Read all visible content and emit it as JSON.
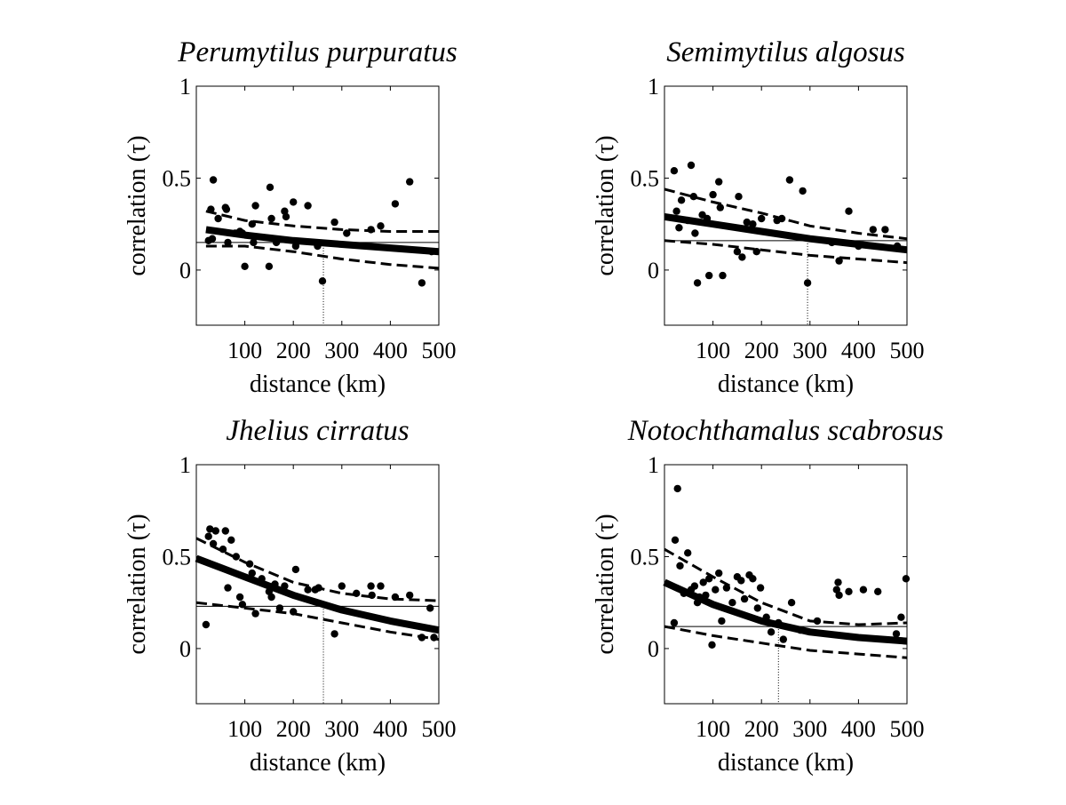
{
  "figure": {
    "xlabel": "distance (km)",
    "ylabel": "correlation (τ)"
  },
  "chart_data": [
    {
      "type": "scatter",
      "title": "Perumytilus purpuratus",
      "xlabel": "distance (km)",
      "ylabel": "correlation (τ)",
      "xlim": [
        0,
        500
      ],
      "ylim": [
        -0.3,
        1
      ],
      "xticks": [
        100,
        200,
        300,
        400,
        500
      ],
      "yticks": [
        0,
        0.5,
        1
      ],
      "points": [
        [
          25,
          0.16
        ],
        [
          30,
          0.33
        ],
        [
          33,
          0.17
        ],
        [
          35,
          0.49
        ],
        [
          45,
          0.28
        ],
        [
          60,
          0.34
        ],
        [
          62,
          0.33
        ],
        [
          65,
          0.15
        ],
        [
          80,
          0.2
        ],
        [
          85,
          0.2
        ],
        [
          90,
          0.21
        ],
        [
          95,
          0.2
        ],
        [
          100,
          0.02
        ],
        [
          115,
          0.25
        ],
        [
          118,
          0.15
        ],
        [
          122,
          0.35
        ],
        [
          150,
          0.02
        ],
        [
          152,
          0.45
        ],
        [
          155,
          0.28
        ],
        [
          165,
          0.15
        ],
        [
          182,
          0.32
        ],
        [
          185,
          0.29
        ],
        [
          200,
          0.37
        ],
        [
          205,
          0.13
        ],
        [
          230,
          0.35
        ],
        [
          250,
          0.13
        ],
        [
          260,
          -0.06
        ],
        [
          285,
          0.26
        ],
        [
          310,
          0.2
        ],
        [
          360,
          0.22
        ],
        [
          380,
          0.24
        ],
        [
          410,
          0.36
        ],
        [
          440,
          0.48
        ],
        [
          465,
          -0.07
        ],
        [
          485,
          0.1
        ]
      ],
      "fit": [
        [
          20,
          0.22
        ],
        [
          100,
          0.19
        ],
        [
          200,
          0.16
        ],
        [
          300,
          0.14
        ],
        [
          400,
          0.12
        ],
        [
          500,
          0.1
        ]
      ],
      "ci_upper": [
        [
          20,
          0.32
        ],
        [
          100,
          0.27
        ],
        [
          200,
          0.24
        ],
        [
          300,
          0.22
        ],
        [
          400,
          0.21
        ],
        [
          500,
          0.21
        ]
      ],
      "ci_lower": [
        [
          20,
          0.13
        ],
        [
          100,
          0.13
        ],
        [
          200,
          0.1
        ],
        [
          300,
          0.06
        ],
        [
          400,
          0.03
        ],
        [
          500,
          0.01
        ]
      ],
      "hline": 0.15,
      "vline": 262
    },
    {
      "type": "scatter",
      "title": "Semimytilus algosus",
      "xlabel": "distance (km)",
      "ylabel": "correlation (τ)",
      "xlim": [
        0,
        500
      ],
      "ylim": [
        -0.3,
        1
      ],
      "xticks": [
        100,
        200,
        300,
        400,
        500
      ],
      "yticks": [
        0,
        0.5,
        1
      ],
      "points": [
        [
          20,
          0.54
        ],
        [
          25,
          0.32
        ],
        [
          30,
          0.23
        ],
        [
          35,
          0.38
        ],
        [
          48,
          0.27
        ],
        [
          55,
          0.57
        ],
        [
          60,
          0.4
        ],
        [
          63,
          0.2
        ],
        [
          68,
          -0.07
        ],
        [
          78,
          0.3
        ],
        [
          88,
          0.28
        ],
        [
          92,
          -0.03
        ],
        [
          100,
          0.41
        ],
        [
          112,
          0.48
        ],
        [
          115,
          0.34
        ],
        [
          120,
          -0.03
        ],
        [
          150,
          0.1
        ],
        [
          153,
          0.4
        ],
        [
          160,
          0.07
        ],
        [
          170,
          0.26
        ],
        [
          182,
          0.25
        ],
        [
          190,
          0.1
        ],
        [
          200,
          0.28
        ],
        [
          232,
          0.27
        ],
        [
          242,
          0.28
        ],
        [
          258,
          0.49
        ],
        [
          285,
          0.43
        ],
        [
          295,
          -0.07
        ],
        [
          345,
          0.15
        ],
        [
          360,
          0.05
        ],
        [
          380,
          0.32
        ],
        [
          400,
          0.13
        ],
        [
          430,
          0.22
        ],
        [
          455,
          0.22
        ],
        [
          480,
          0.13
        ]
      ],
      "fit": [
        [
          0,
          0.29
        ],
        [
          100,
          0.25
        ],
        [
          200,
          0.21
        ],
        [
          300,
          0.17
        ],
        [
          400,
          0.14
        ],
        [
          500,
          0.11
        ]
      ],
      "ci_upper": [
        [
          0,
          0.44
        ],
        [
          100,
          0.37
        ],
        [
          200,
          0.31
        ],
        [
          300,
          0.24
        ],
        [
          400,
          0.2
        ],
        [
          500,
          0.17
        ]
      ],
      "ci_lower": [
        [
          0,
          0.16
        ],
        [
          100,
          0.14
        ],
        [
          200,
          0.11
        ],
        [
          300,
          0.08
        ],
        [
          400,
          0.06
        ],
        [
          500,
          0.04
        ]
      ],
      "hline": 0.16,
      "vline": 295
    },
    {
      "type": "scatter",
      "title": "Jhelius cirratus",
      "xlabel": "distance (km)",
      "ylabel": "correlation (τ)",
      "xlim": [
        0,
        500
      ],
      "ylim": [
        -0.3,
        1
      ],
      "xticks": [
        100,
        200,
        300,
        400,
        500
      ],
      "yticks": [
        0,
        0.5,
        1
      ],
      "points": [
        [
          20,
          0.13
        ],
        [
          25,
          0.61
        ],
        [
          28,
          0.65
        ],
        [
          35,
          0.57
        ],
        [
          40,
          0.64
        ],
        [
          55,
          0.54
        ],
        [
          60,
          0.64
        ],
        [
          65,
          0.33
        ],
        [
          72,
          0.59
        ],
        [
          82,
          0.5
        ],
        [
          90,
          0.28
        ],
        [
          95,
          0.24
        ],
        [
          110,
          0.46
        ],
        [
          115,
          0.41
        ],
        [
          122,
          0.19
        ],
        [
          135,
          0.38
        ],
        [
          150,
          0.31
        ],
        [
          155,
          0.28
        ],
        [
          162,
          0.35
        ],
        [
          172,
          0.22
        ],
        [
          182,
          0.34
        ],
        [
          200,
          0.2
        ],
        [
          205,
          0.43
        ],
        [
          230,
          0.32
        ],
        [
          245,
          0.32
        ],
        [
          252,
          0.33
        ],
        [
          285,
          0.08
        ],
        [
          300,
          0.34
        ],
        [
          330,
          0.3
        ],
        [
          360,
          0.34
        ],
        [
          362,
          0.29
        ],
        [
          380,
          0.34
        ],
        [
          410,
          0.28
        ],
        [
          440,
          0.29
        ],
        [
          465,
          0.06
        ],
        [
          482,
          0.22
        ],
        [
          490,
          0.06
        ]
      ],
      "fit": [
        [
          0,
          0.49
        ],
        [
          100,
          0.39
        ],
        [
          200,
          0.29
        ],
        [
          300,
          0.21
        ],
        [
          400,
          0.15
        ],
        [
          500,
          0.1
        ]
      ],
      "ci_upper": [
        [
          0,
          0.6
        ],
        [
          100,
          0.47
        ],
        [
          200,
          0.36
        ],
        [
          300,
          0.3
        ],
        [
          400,
          0.27
        ],
        [
          500,
          0.26
        ]
      ],
      "ci_lower": [
        [
          0,
          0.25
        ],
        [
          100,
          0.22
        ],
        [
          200,
          0.19
        ],
        [
          300,
          0.14
        ],
        [
          400,
          0.09
        ],
        [
          500,
          0.05
        ]
      ],
      "hline": 0.23,
      "vline": 262
    },
    {
      "type": "scatter",
      "title": "Notochthamalus scabrosus",
      "xlabel": "distance (km)",
      "ylabel": "correlation (τ)",
      "xlim": [
        0,
        500
      ],
      "ylim": [
        -0.3,
        1
      ],
      "xticks": [
        100,
        200,
        300,
        400,
        500
      ],
      "yticks": [
        0,
        0.5,
        1
      ],
      "points": [
        [
          20,
          0.14
        ],
        [
          22,
          0.59
        ],
        [
          27,
          0.87
        ],
        [
          32,
          0.45
        ],
        [
          40,
          0.3
        ],
        [
          48,
          0.52
        ],
        [
          55,
          0.32
        ],
        [
          62,
          0.34
        ],
        [
          68,
          0.25
        ],
        [
          72,
          0.28
        ],
        [
          80,
          0.36
        ],
        [
          85,
          0.29
        ],
        [
          92,
          0.38
        ],
        [
          98,
          0.02
        ],
        [
          105,
          0.32
        ],
        [
          112,
          0.41
        ],
        [
          118,
          0.15
        ],
        [
          128,
          0.33
        ],
        [
          140,
          0.25
        ],
        [
          150,
          0.39
        ],
        [
          158,
          0.37
        ],
        [
          165,
          0.27
        ],
        [
          175,
          0.4
        ],
        [
          182,
          0.38
        ],
        [
          192,
          0.22
        ],
        [
          198,
          0.33
        ],
        [
          210,
          0.17
        ],
        [
          220,
          0.09
        ],
        [
          235,
          0.14
        ],
        [
          245,
          0.05
        ],
        [
          262,
          0.25
        ],
        [
          280,
          0.1
        ],
        [
          315,
          0.15
        ],
        [
          355,
          0.32
        ],
        [
          358,
          0.36
        ],
        [
          360,
          0.29
        ],
        [
          380,
          0.31
        ],
        [
          410,
          0.32
        ],
        [
          440,
          0.31
        ],
        [
          478,
          0.08
        ],
        [
          488,
          0.17
        ],
        [
          498,
          0.38
        ]
      ],
      "fit": [
        [
          0,
          0.36
        ],
        [
          100,
          0.24
        ],
        [
          200,
          0.15
        ],
        [
          300,
          0.09
        ],
        [
          400,
          0.06
        ],
        [
          500,
          0.04
        ]
      ],
      "ci_upper": [
        [
          0,
          0.54
        ],
        [
          100,
          0.39
        ],
        [
          200,
          0.25
        ],
        [
          300,
          0.15
        ],
        [
          400,
          0.13
        ],
        [
          500,
          0.14
        ]
      ],
      "ci_lower": [
        [
          0,
          0.12
        ],
        [
          100,
          0.07
        ],
        [
          200,
          0.03
        ],
        [
          300,
          -0.01
        ],
        [
          400,
          -0.03
        ],
        [
          500,
          -0.05
        ]
      ],
      "hline": 0.12,
      "vline": 235
    }
  ]
}
